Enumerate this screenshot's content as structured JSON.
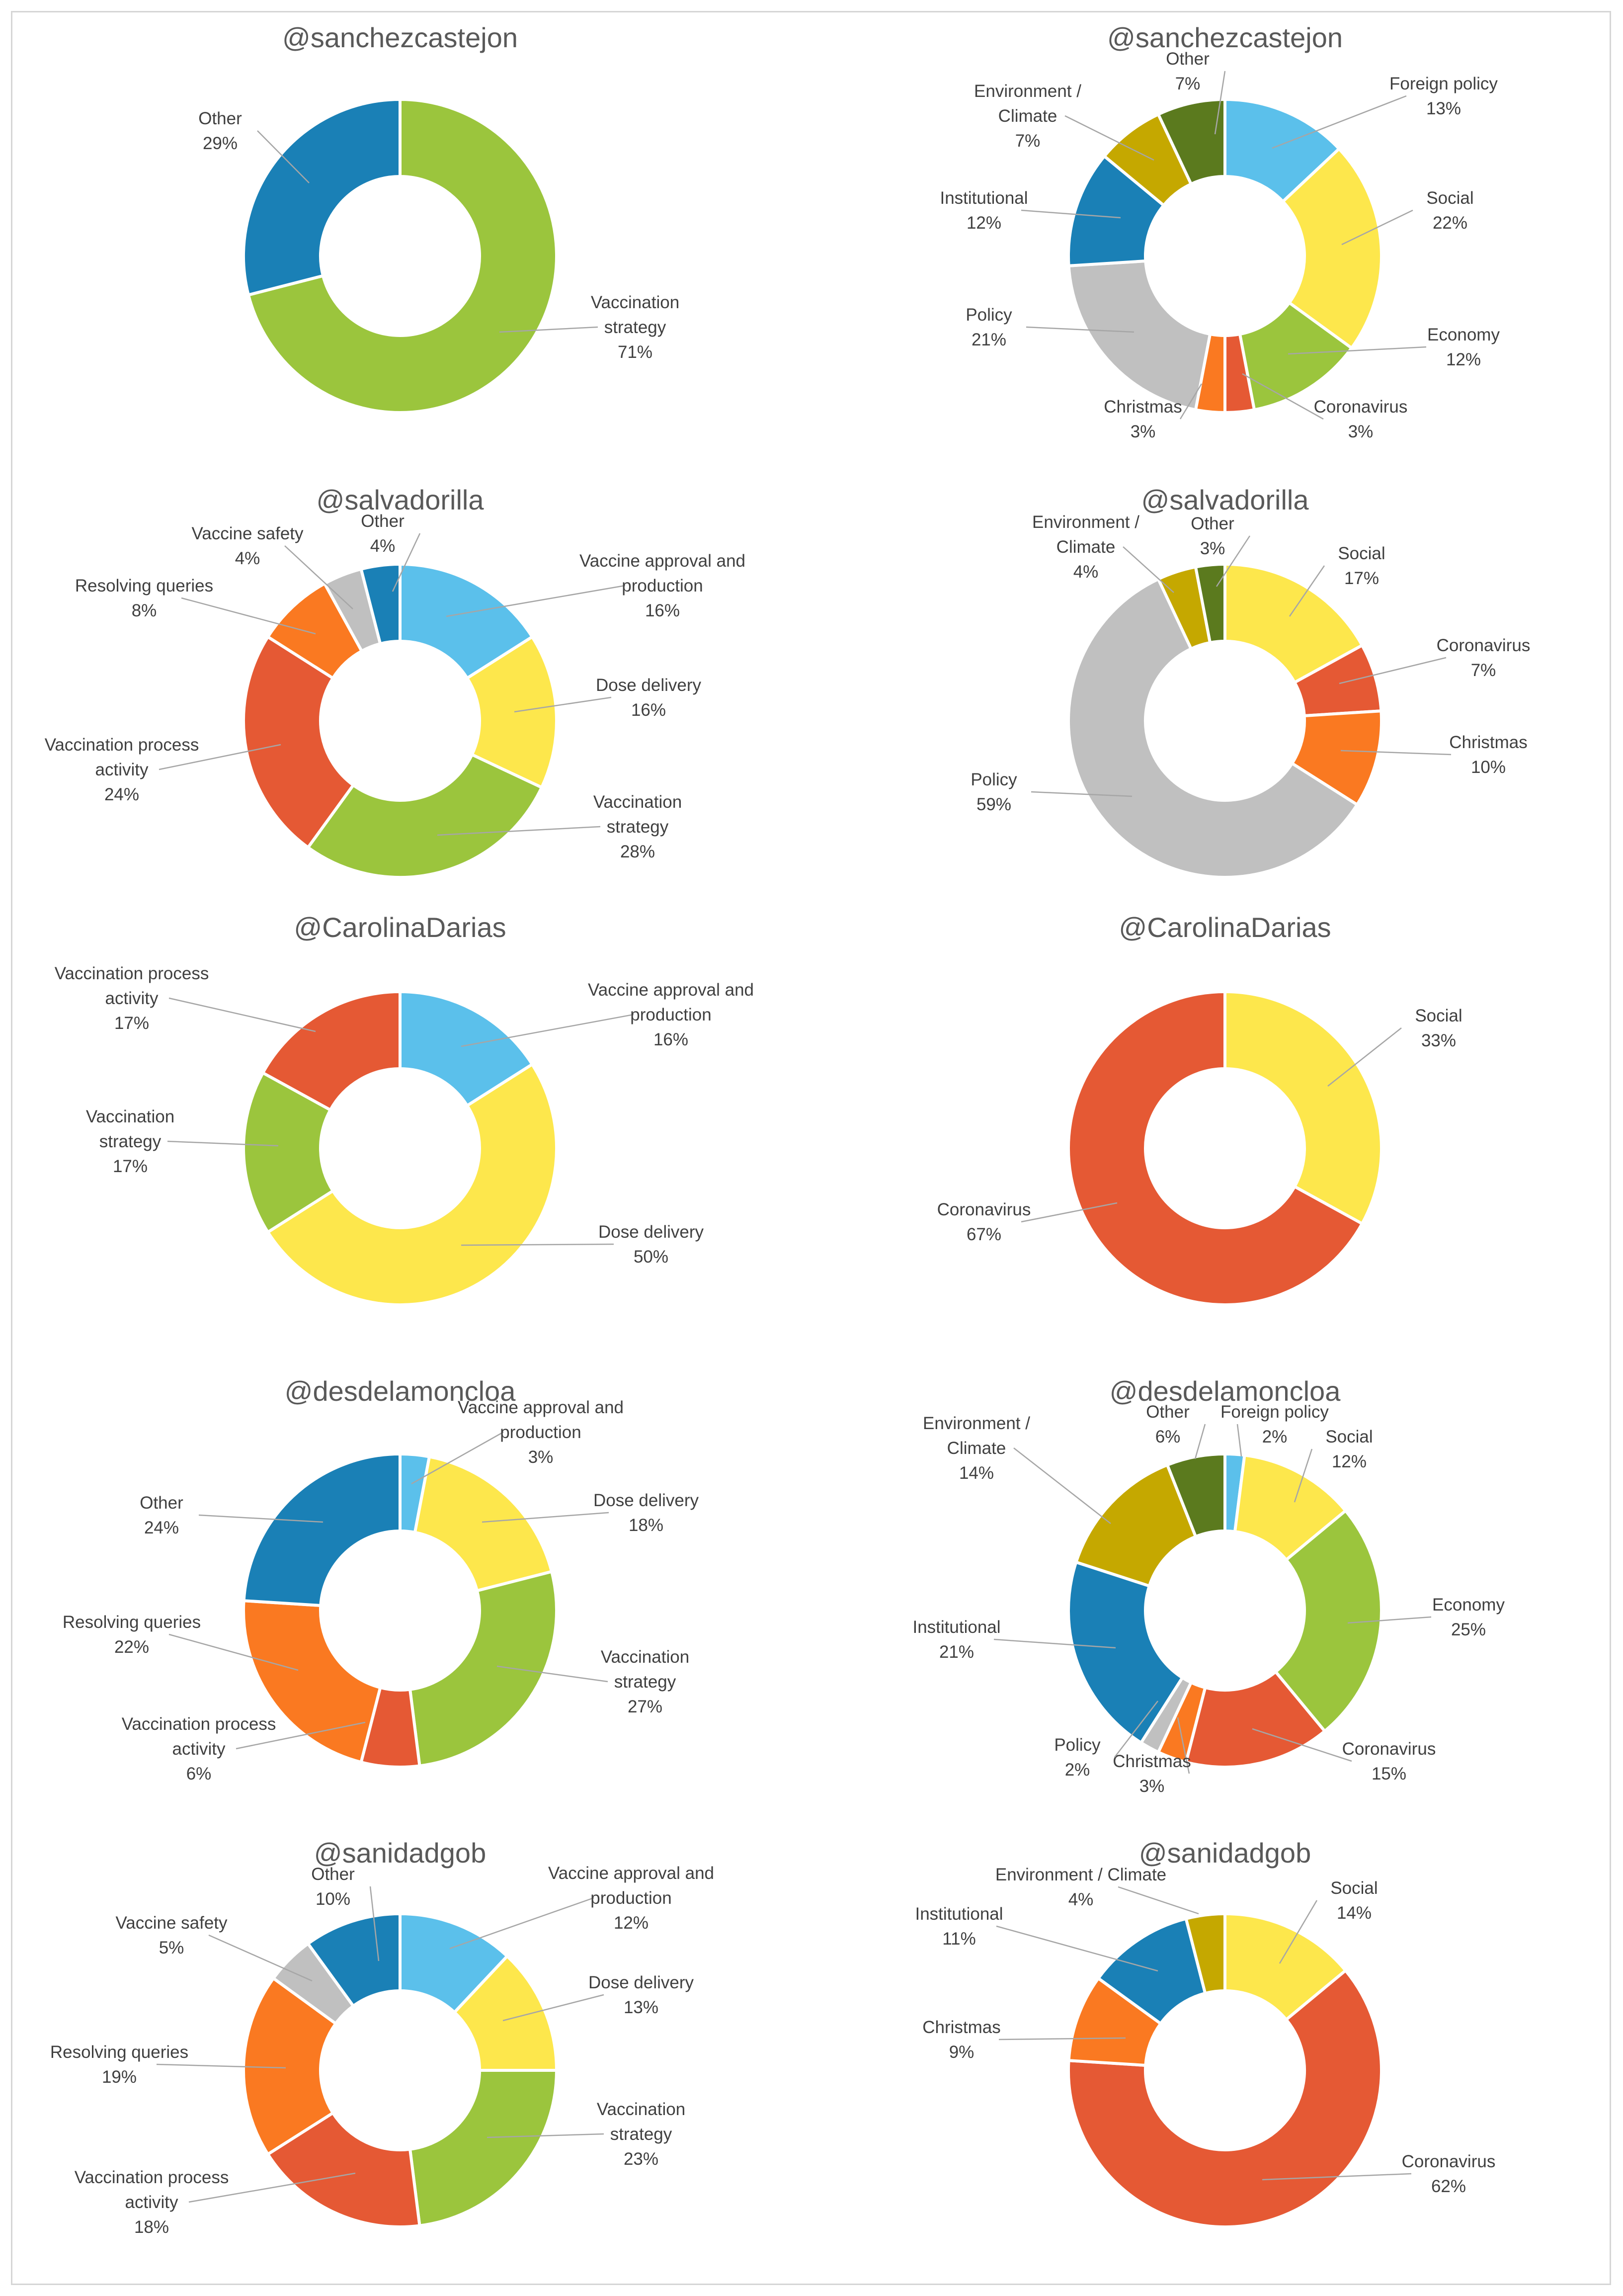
{
  "chart_data": [
    {
      "type": "donut",
      "title": "@sanchezcastejon",
      "slices": [
        {
          "label": "Vaccination strategy",
          "value": 71,
          "pct": "71%",
          "color": "#9BC53D"
        },
        {
          "label": "Other",
          "value": 29,
          "pct": "29%",
          "color": "#1A80B6"
        }
      ]
    },
    {
      "type": "donut",
      "title": "@sanchezcastejon",
      "slices": [
        {
          "label": "Foreign policy",
          "value": 13,
          "pct": "13%",
          "color": "#5BC0EB"
        },
        {
          "label": "Social",
          "value": 22,
          "pct": "22%",
          "color": "#FDE74C"
        },
        {
          "label": "Economy",
          "value": 12,
          "pct": "12%",
          "color": "#9BC53D"
        },
        {
          "label": "Coronavirus",
          "value": 3,
          "pct": "3%",
          "color": "#E55934"
        },
        {
          "label": "Christmas",
          "value": 3,
          "pct": "3%",
          "color": "#FA7921"
        },
        {
          "label": "Policy",
          "value": 21,
          "pct": "21%",
          "color": "#C0C0C0"
        },
        {
          "label": "Institutional",
          "value": 12,
          "pct": "12%",
          "color": "#1A80B6"
        },
        {
          "label": "Environment / Climate",
          "value": 7,
          "pct": "7%",
          "color": "#C5A800"
        },
        {
          "label": "Other",
          "value": 7,
          "pct": "7%",
          "color": "#5B7A1E"
        }
      ]
    },
    {
      "type": "donut",
      "title": "@salvadorilla",
      "slices": [
        {
          "label": "Vaccine approval and production",
          "value": 16,
          "pct": "16%",
          "color": "#5BC0EB"
        },
        {
          "label": "Dose delivery",
          "value": 16,
          "pct": "16%",
          "color": "#FDE74C"
        },
        {
          "label": "Vaccination strategy",
          "value": 28,
          "pct": "28%",
          "color": "#9BC53D"
        },
        {
          "label": "Vaccination process activity",
          "value": 24,
          "pct": "24%",
          "color": "#E55934"
        },
        {
          "label": "Resolving queries",
          "value": 8,
          "pct": "8%",
          "color": "#FA7921"
        },
        {
          "label": "Vaccine safety",
          "value": 4,
          "pct": "4%",
          "color": "#C0C0C0"
        },
        {
          "label": "Other",
          "value": 4,
          "pct": "4%",
          "color": "#1A80B6"
        }
      ]
    },
    {
      "type": "donut",
      "title": "@salvadorilla",
      "slices": [
        {
          "label": "Social",
          "value": 17,
          "pct": "17%",
          "color": "#FDE74C"
        },
        {
          "label": "Coronavirus",
          "value": 7,
          "pct": "7%",
          "color": "#E55934"
        },
        {
          "label": "Christmas",
          "value": 10,
          "pct": "10%",
          "color": "#FA7921"
        },
        {
          "label": "Policy",
          "value": 59,
          "pct": "59%",
          "color": "#C0C0C0"
        },
        {
          "label": "Environment / Climate",
          "value": 4,
          "pct": "4%",
          "color": "#C5A800"
        },
        {
          "label": "Other",
          "value": 3,
          "pct": "3%",
          "color": "#5B7A1E"
        }
      ]
    },
    {
      "type": "donut",
      "title": "@CarolinaDarias",
      "slices": [
        {
          "label": "Vaccine approval and production",
          "value": 16,
          "pct": "16%",
          "color": "#5BC0EB"
        },
        {
          "label": "Dose delivery",
          "value": 50,
          "pct": "50%",
          "color": "#FDE74C"
        },
        {
          "label": "Vaccination strategy",
          "value": 17,
          "pct": "17%",
          "color": "#9BC53D"
        },
        {
          "label": "Vaccination process activity",
          "value": 17,
          "pct": "17%",
          "color": "#E55934"
        }
      ]
    },
    {
      "type": "donut",
      "title": "@CarolinaDarias",
      "slices": [
        {
          "label": "Social",
          "value": 33,
          "pct": "33%",
          "color": "#FDE74C"
        },
        {
          "label": "Coronavirus",
          "value": 67,
          "pct": "67%",
          "color": "#E55934"
        }
      ]
    },
    {
      "type": "donut",
      "title": "@desdelamoncloa",
      "slices": [
        {
          "label": "Vaccine approval and production",
          "value": 3,
          "pct": "3%",
          "color": "#5BC0EB"
        },
        {
          "label": "Dose delivery",
          "value": 18,
          "pct": "18%",
          "color": "#FDE74C"
        },
        {
          "label": "Vaccination strategy",
          "value": 27,
          "pct": "27%",
          "color": "#9BC53D"
        },
        {
          "label": "Vaccination process activity",
          "value": 6,
          "pct": "6%",
          "color": "#E55934"
        },
        {
          "label": "Resolving queries",
          "value": 22,
          "pct": "22%",
          "color": "#FA7921"
        },
        {
          "label": "Other",
          "value": 24,
          "pct": "24%",
          "color": "#1A80B6"
        }
      ]
    },
    {
      "type": "donut",
      "title": "@desdelamoncloa",
      "slices": [
        {
          "label": "Foreign policy",
          "value": 2,
          "pct": "2%",
          "color": "#5BC0EB"
        },
        {
          "label": "Social",
          "value": 12,
          "pct": "12%",
          "color": "#FDE74C"
        },
        {
          "label": "Economy",
          "value": 25,
          "pct": "25%",
          "color": "#9BC53D"
        },
        {
          "label": "Coronavirus",
          "value": 15,
          "pct": "15%",
          "color": "#E55934"
        },
        {
          "label": "Christmas",
          "value": 3,
          "pct": "3%",
          "color": "#FA7921"
        },
        {
          "label": "Policy",
          "value": 2,
          "pct": "2%",
          "color": "#C0C0C0"
        },
        {
          "label": "Institutional",
          "value": 21,
          "pct": "21%",
          "color": "#1A80B6"
        },
        {
          "label": "Environment / Climate",
          "value": 14,
          "pct": "14%",
          "color": "#C5A800"
        },
        {
          "label": "Other",
          "value": 6,
          "pct": "6%",
          "color": "#5B7A1E"
        }
      ]
    },
    {
      "type": "donut",
      "title": "@sanidadgob",
      "slices": [
        {
          "label": "Vaccine approval and production",
          "value": 12,
          "pct": "12%",
          "color": "#5BC0EB"
        },
        {
          "label": "Dose delivery",
          "value": 13,
          "pct": "13%",
          "color": "#FDE74C"
        },
        {
          "label": "Vaccination strategy",
          "value": 23,
          "pct": "23%",
          "color": "#9BC53D"
        },
        {
          "label": "Vaccination process activity",
          "value": 18,
          "pct": "18%",
          "color": "#E55934"
        },
        {
          "label": "Resolving queries",
          "value": 19,
          "pct": "19%",
          "color": "#FA7921"
        },
        {
          "label": "Vaccine safety",
          "value": 5,
          "pct": "5%",
          "color": "#C0C0C0"
        },
        {
          "label": "Other",
          "value": 10,
          "pct": "10%",
          "color": "#1A80B6"
        }
      ]
    },
    {
      "type": "donut",
      "title": "@sanidadgob",
      "slices": [
        {
          "label": "Social",
          "value": 14,
          "pct": "14%",
          "color": "#FDE74C"
        },
        {
          "label": "Coronavirus",
          "value": 62,
          "pct": "62%",
          "color": "#E55934"
        },
        {
          "label": "Christmas",
          "value": 9,
          "pct": "9%",
          "color": "#FA7921"
        },
        {
          "label": "Institutional",
          "value": 11,
          "pct": "11%",
          "color": "#1A80B6"
        },
        {
          "label": "Environment / Climate",
          "value": 4,
          "pct": "4%",
          "color": "#C5A800"
        }
      ]
    }
  ]
}
